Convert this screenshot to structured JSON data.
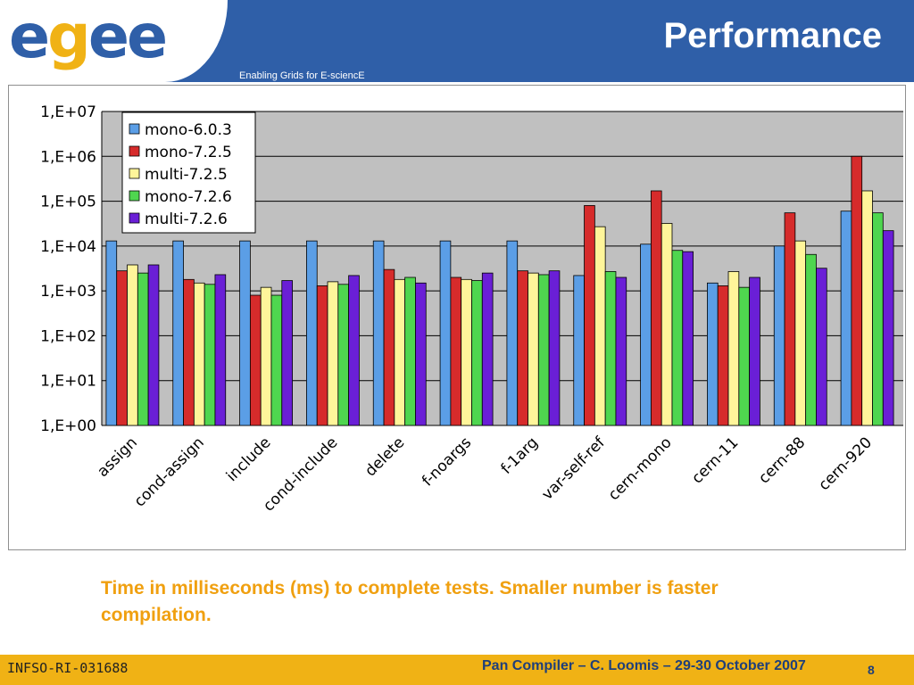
{
  "header": {
    "logo": {
      "letters": [
        "e",
        "g",
        "e",
        "e"
      ]
    },
    "tagline": "Enabling Grids for E-sciencE",
    "title": "Performance"
  },
  "caption": "Time in milliseconds (ms) to complete tests.  Smaller number is faster compilation.",
  "footer": {
    "left": "INFSO-RI-031688",
    "center": "Pan Compiler  – C. Loomis – 29-30 October 2007",
    "page": "8"
  },
  "colors": {
    "header_blue": "#2f5fa8",
    "footer_gold": "#f0b215",
    "caption_orange": "#f0a010",
    "plot_bg": "#c0c0c0"
  },
  "chart_data": {
    "type": "bar",
    "y_scale": "log10",
    "ylim": [
      1,
      10000000
    ],
    "y_tick_labels": [
      "1,E+00",
      "1,E+01",
      "1,E+02",
      "1,E+03",
      "1,E+04",
      "1,E+05",
      "1,E+06",
      "1,E+07"
    ],
    "grid": true,
    "legend_position": "top-left",
    "categories": [
      "assign",
      "cond-assign",
      "include",
      "cond-include",
      "delete",
      "f-noargs",
      "f-1arg",
      "var-self-ref",
      "cern-mono",
      "cern-11",
      "cern-88",
      "cern-920"
    ],
    "series": [
      {
        "name": "mono-6.0.3",
        "color": "#5b9ee6",
        "values": [
          13000,
          13000,
          13000,
          13000,
          13000,
          13000,
          13000,
          2200,
          11000,
          1500,
          10000,
          60000
        ]
      },
      {
        "name": "mono-7.2.5",
        "color": "#d62b2b",
        "values": [
          2800,
          1800,
          800,
          1300,
          3000,
          2000,
          2800,
          80000,
          170000,
          1300,
          55000,
          1000000
        ]
      },
      {
        "name": "multi-7.2.5",
        "color": "#fff59a",
        "values": [
          3800,
          1500,
          1200,
          1600,
          1800,
          1800,
          2500,
          27000,
          32000,
          2700,
          13000,
          170000
        ]
      },
      {
        "name": "mono-7.2.6",
        "color": "#4fd64f",
        "values": [
          2500,
          1400,
          800,
          1400,
          2000,
          1700,
          2300,
          2700,
          8000,
          1200,
          6500,
          55000
        ]
      },
      {
        "name": "multi-7.2.6",
        "color": "#6a1fd6",
        "values": [
          3800,
          2300,
          1700,
          2200,
          1500,
          2500,
          2800,
          2000,
          7500,
          2000,
          3200,
          22000
        ]
      }
    ]
  }
}
